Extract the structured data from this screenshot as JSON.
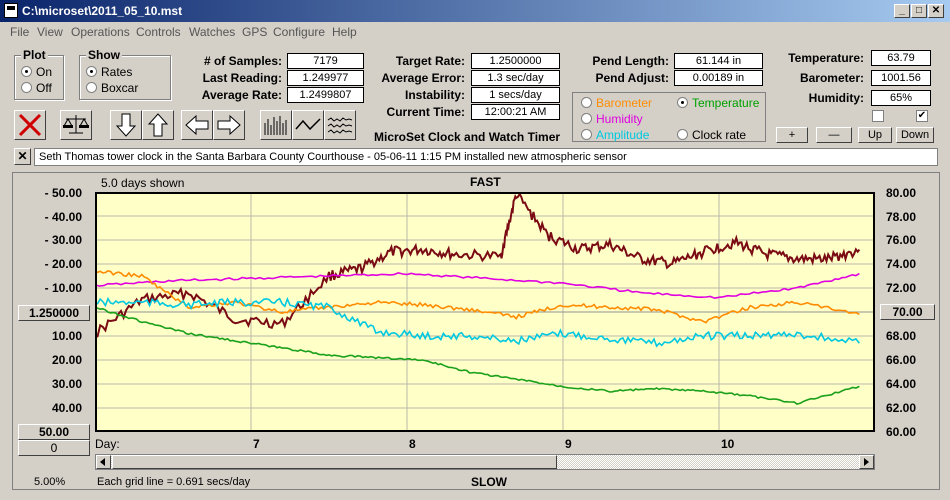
{
  "window": {
    "title": "C:\\microset\\2011_05_10.mst",
    "minimize": "_",
    "maximize": "□",
    "close": "✕"
  },
  "menu": [
    "File",
    "View",
    "Operations",
    "Controls",
    "Watches",
    "GPS",
    "Configure",
    "Help"
  ],
  "plot": {
    "title": "Plot",
    "on": "On",
    "off": "Off",
    "selected": "On"
  },
  "show": {
    "title": "Show",
    "rates": "Rates",
    "boxcar": "Boxcar",
    "selected": "Rates"
  },
  "stats": {
    "samples_label": "# of Samples:",
    "samples": "7179",
    "last_label": "Last Reading:",
    "last": "1.249977",
    "avg_label": "Average Rate:",
    "avg": "1.2499807",
    "target_label": "Target Rate:",
    "target": "1.2500000",
    "avgerr_label": "Average Error:",
    "avgerr": "1.3 sec/day",
    "instab_label": "Instability:",
    "instab": "1 secs/day",
    "time_label": "Current Time:",
    "time": "12:00:21 AM",
    "pendlen_label": "Pend Length:",
    "pendlen": "61.144 in",
    "pendadj_label": "Pend Adjust:",
    "pendadj": "0.00189 in",
    "temp_label": "Temperature:",
    "temp": "63.79",
    "baro_label": "Barometer:",
    "baro": "1001.56",
    "hum_label": "Humidity:",
    "hum": "65%"
  },
  "sensors": {
    "barometer": "Barometer",
    "temperature": "Temperature",
    "humidity": "Humidity",
    "amplitude": "Amplitude",
    "clock_rate": "Clock rate",
    "selected": "Temperature",
    "colors": {
      "barometer": "#ff8c00",
      "temperature": "#00a000",
      "humidity": "#e000e0",
      "amplitude": "#00c8e0",
      "clock_rate": "#000000"
    }
  },
  "timer_title": "MicroSet Clock and Watch Timer",
  "adjust_buttons": {
    "plus": "+",
    "minus": "—",
    "up": "Up",
    "down": "Down"
  },
  "note": "Seth Thomas tower clock in the Santa Barbara County Courthouse -  05-06-11 1:15 PM installed new atmospheric sensor",
  "chart_header": {
    "days_shown": "5.0 days shown",
    "fast": "FAST",
    "slow": "SLOW",
    "day_label": "Day:",
    "grid_note": "Each grid line = 0.691 secs/day",
    "zoom": "5.00%"
  },
  "left_axis": {
    "ticks": [
      "- 50.00",
      "- 40.00",
      "- 30.00",
      "- 20.00",
      "- 10.00",
      "10.00",
      "20.00",
      "30.00",
      "40.00"
    ],
    "center": "1.250000",
    "bottom": "50.00",
    "scroll_val": "0"
  },
  "right_axis": {
    "ticks": [
      "80.00",
      "78.00",
      "76.00",
      "74.00",
      "72.00",
      "68.00",
      "66.00",
      "64.00",
      "62.00",
      "60.00"
    ],
    "center": "70.00"
  },
  "chart_data": {
    "type": "line",
    "x_ticks": [
      "7",
      "8",
      "9",
      "10"
    ],
    "xlim": [
      6,
      11
    ],
    "ylim_left": [
      -50,
      50
    ],
    "ylim_right": [
      60,
      80
    ],
    "series": [
      {
        "name": "Clock rate",
        "color": "#7a0a14",
        "x": [
          6.0,
          6.3,
          6.6,
          6.9,
          7.2,
          7.5,
          7.7,
          7.9,
          8.1,
          8.3,
          8.6,
          8.7,
          8.9,
          9.1,
          9.3,
          9.5,
          9.7,
          9.9,
          10.1,
          10.3,
          10.5,
          10.7,
          10.9
        ],
        "y": [
          9,
          -5,
          -8,
          3,
          5,
          -15,
          -18,
          -25,
          -26,
          -24,
          -23,
          -49,
          -32,
          -26,
          -28,
          -22,
          -20,
          -25,
          -29,
          -24,
          -22,
          -22,
          -26
        ]
      },
      {
        "name": "Humidity",
        "color": "#e000e0",
        "x": [
          6.0,
          6.5,
          7.0,
          7.5,
          8.0,
          8.5,
          9.0,
          9.5,
          10.0,
          10.5,
          10.9
        ],
        "y": [
          -11,
          -13,
          -14,
          -15,
          -16,
          -14,
          -12,
          -8,
          -6,
          -10,
          -16
        ]
      },
      {
        "name": "Barometer",
        "color": "#ff8c00",
        "x": [
          6.0,
          6.3,
          6.6,
          6.9,
          7.2,
          7.5,
          7.8,
          8.1,
          8.4,
          8.7,
          9.0,
          9.3,
          9.6,
          9.9,
          10.2,
          10.5,
          10.9
        ],
        "y": [
          -17,
          -15,
          -2,
          -4,
          0,
          -2,
          -4,
          -3,
          -1,
          2,
          -3,
          -2,
          -1,
          4,
          -2,
          -4,
          1
        ]
      },
      {
        "name": "Amplitude",
        "color": "#00c8e0",
        "x": [
          6.0,
          6.3,
          6.6,
          6.9,
          7.2,
          7.5,
          7.8,
          8.1,
          8.4,
          8.7,
          9.0,
          9.3,
          9.6,
          9.9,
          10.2,
          10.5,
          10.9
        ],
        "y": [
          -4,
          -4,
          -3,
          -4,
          -4,
          -2,
          8,
          10,
          10,
          12,
          9,
          11,
          13,
          10,
          10,
          9,
          13
        ]
      },
      {
        "name": "Temperature",
        "color": "#1aa01a",
        "x": [
          6.0,
          6.3,
          6.6,
          6.9,
          7.2,
          7.5,
          7.8,
          8.1,
          8.4,
          8.7,
          9.0,
          9.3,
          9.6,
          9.9,
          10.2,
          10.5,
          10.9
        ],
        "y": [
          -2,
          4,
          9,
          12,
          15,
          18,
          19,
          20,
          25,
          28,
          31,
          33,
          32,
          33,
          35,
          38,
          31
        ]
      }
    ]
  }
}
